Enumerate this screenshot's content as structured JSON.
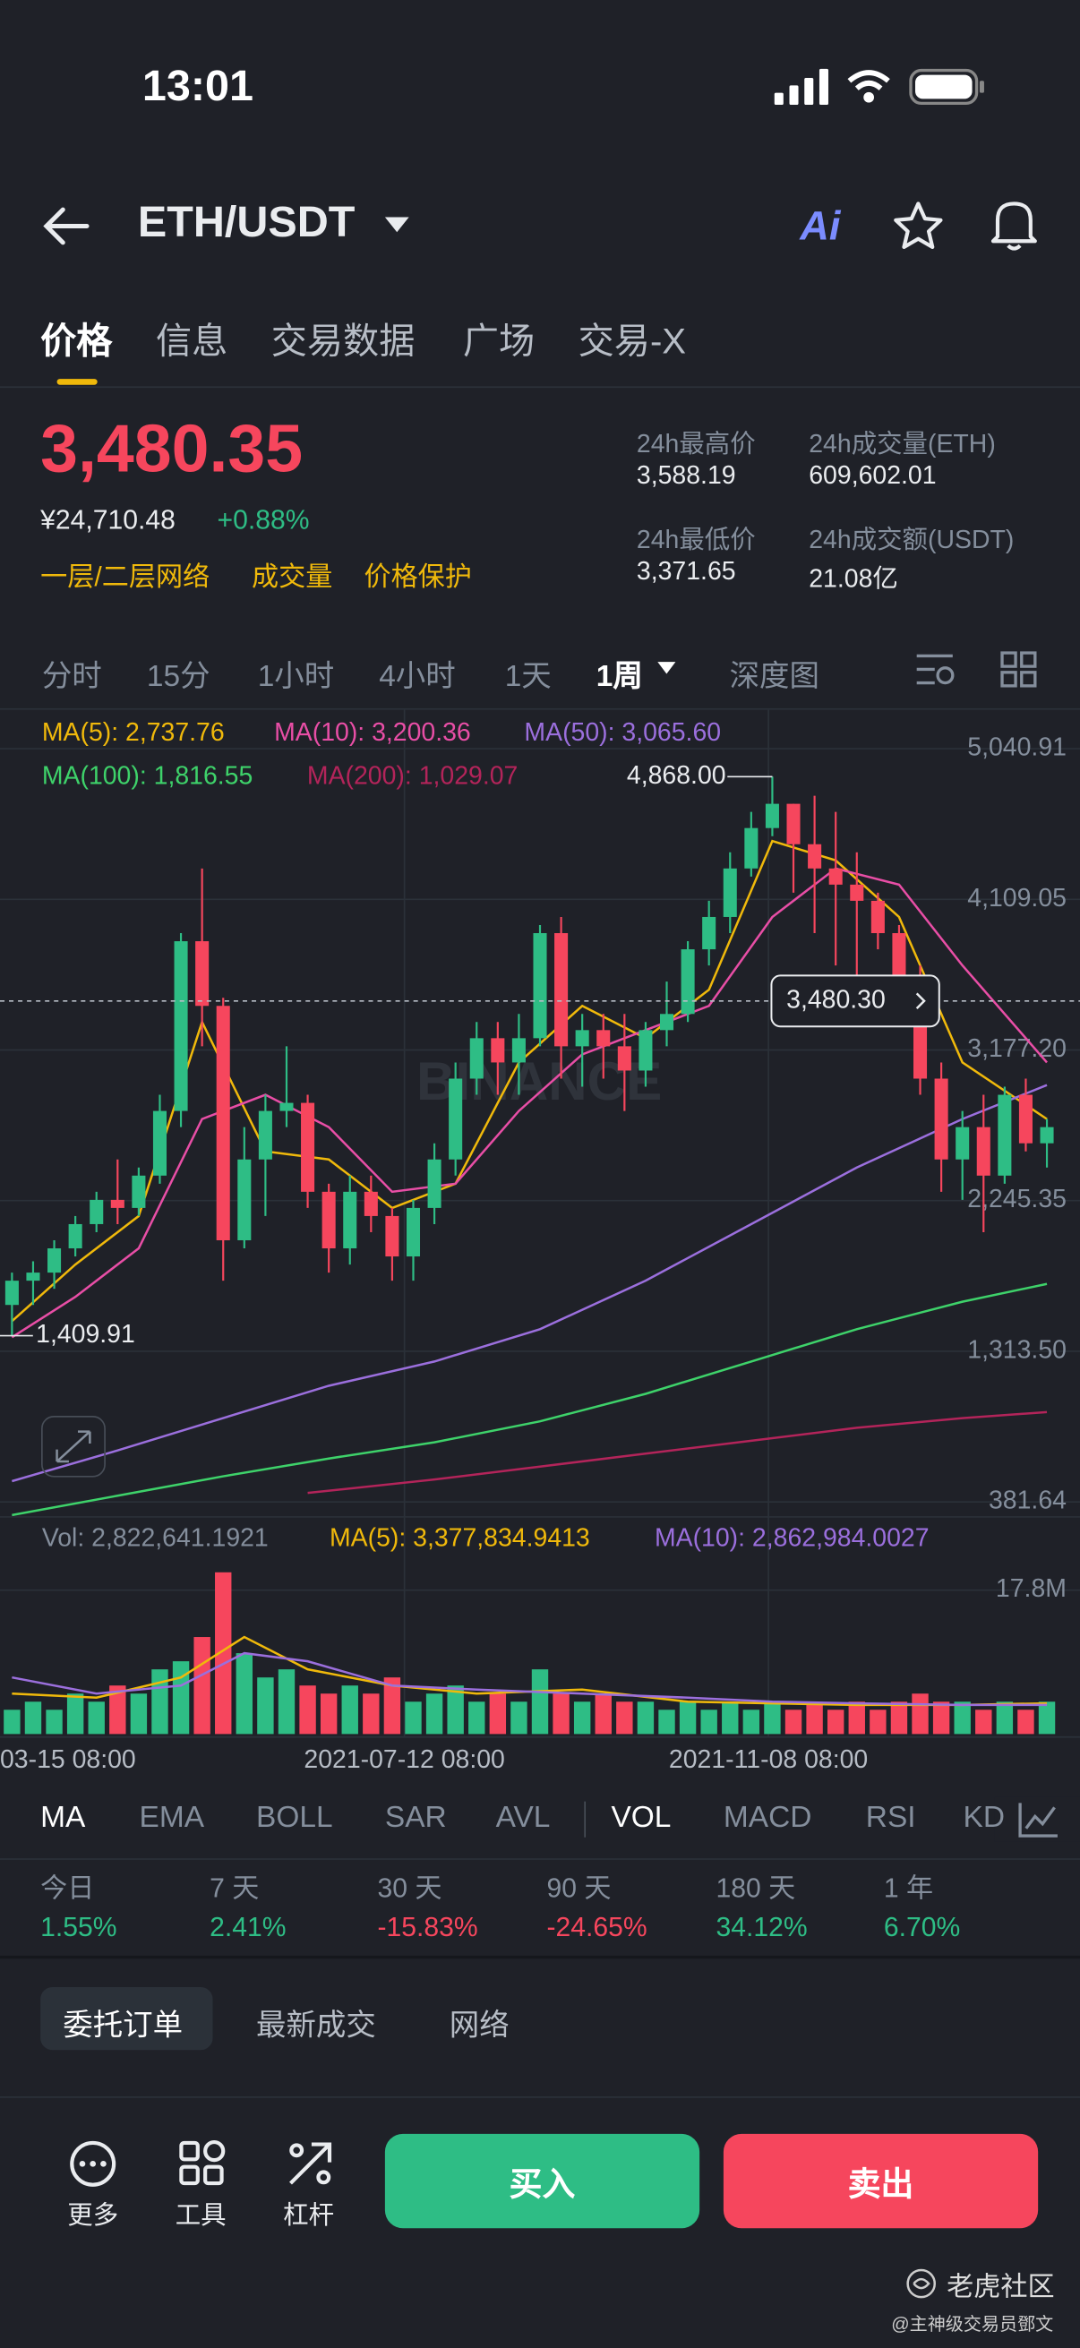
{
  "status_bar": {
    "time": "13:01"
  },
  "header": {
    "pair": "ETH/USDT",
    "ai": "Ai"
  },
  "tabs": [
    "价格",
    "信息",
    "交易数据",
    "广场",
    "交易-X"
  ],
  "price": {
    "last": "3,480.35",
    "cny": "¥24,710.48",
    "change": "+0.88%",
    "tags": [
      "一层/二层网络",
      "成交量",
      "价格保护"
    ]
  },
  "stats": [
    {
      "label": "24h最高价",
      "value": "3,588.19"
    },
    {
      "label": "24h成交量(ETH)",
      "value": "609,602.01"
    },
    {
      "label": "24h最低价",
      "value": "3,371.65"
    },
    {
      "label": "24h成交额(USDT)",
      "value": "21.08亿"
    }
  ],
  "intervals": [
    "分时",
    "15分",
    "1小时",
    "4小时",
    "1天",
    "1周",
    "深度图"
  ],
  "watermark_logo": "BINANCE",
  "chart_data": [
    {
      "type": "candlestick",
      "legend": [
        {
          "text": "MA(5): 2,737.76",
          "color": "#f0b90b"
        },
        {
          "text": "MA(10): 3,200.36",
          "color": "#e84ea6"
        },
        {
          "text": "MA(50): 3,065.60",
          "color": "#9b6fdd"
        },
        {
          "text": "MA(100): 1,816.55",
          "color": "#3ed26a"
        },
        {
          "text": "MA(200): 1,029.07",
          "color": "#b3245a"
        }
      ],
      "up_color": "#2ebd85",
      "down_color": "#f6465d",
      "open": [
        1600,
        1750,
        1800,
        1950,
        2100,
        2250,
        2200,
        2400,
        2800,
        3850,
        3450,
        2000,
        2500,
        2800,
        2850,
        2300,
        1950,
        2300,
        2150,
        1900,
        2200,
        2500,
        3000,
        3250,
        3100,
        3250,
        3900,
        3200,
        3300,
        3200,
        3050,
        3300,
        3400,
        3800,
        4000,
        4300,
        4550,
        4700,
        4450,
        4300,
        4200,
        4100,
        3900,
        3600,
        3000,
        2500,
        2700,
        2400,
        2900,
        2600
      ],
      "high": [
        1800,
        1870,
        2000,
        2150,
        2300,
        2500,
        2450,
        2900,
        3900,
        4300,
        3500,
        2700,
        2900,
        3200,
        2900,
        2350,
        2400,
        2400,
        2200,
        2250,
        2600,
        3100,
        3350,
        3350,
        3400,
        3950,
        4000,
        3400,
        3400,
        3400,
        3350,
        3600,
        3850,
        4100,
        4400,
        4650,
        4868,
        4700,
        4750,
        4650,
        4400,
        4150,
        3950,
        3700,
        3100,
        2800,
        2900,
        2950,
        3000,
        2750
      ],
      "low": [
        1409.91,
        1600,
        1700,
        1900,
        2050,
        2100,
        2150,
        2350,
        2700,
        3200,
        1750,
        1950,
        2150,
        2700,
        2200,
        1800,
        1850,
        2050,
        1750,
        1750,
        2100,
        2400,
        2900,
        2900,
        2900,
        3200,
        3000,
        2950,
        3000,
        2800,
        2950,
        3200,
        3350,
        3700,
        3900,
        4250,
        4500,
        4150,
        3900,
        3700,
        3500,
        3800,
        3500,
        2900,
        2300,
        2250,
        2050,
        2350,
        2550,
        2450
      ],
      "close": [
        1750,
        1800,
        1950,
        2100,
        2250,
        2200,
        2400,
        2800,
        3850,
        3450,
        2000,
        2500,
        2800,
        2850,
        2300,
        1950,
        2300,
        2150,
        1900,
        2200,
        2500,
        3000,
        3250,
        3100,
        3250,
        3900,
        3200,
        3300,
        3200,
        3050,
        3300,
        3400,
        3800,
        4000,
        4300,
        4550,
        4700,
        4450,
        4300,
        4200,
        4100,
        3900,
        3600,
        3000,
        2500,
        2700,
        2400,
        2900,
        2600,
        2700
      ],
      "ylim": [
        298,
        5226
      ],
      "yticks": [
        {
          "value": 5040.91,
          "label": "5,040.91"
        },
        {
          "value": 4109.05,
          "label": "4,109.05"
        },
        {
          "value": 3177.2,
          "label": "3,177.20"
        },
        {
          "value": 2245.35,
          "label": "2,245.35"
        },
        {
          "value": 1313.5,
          "label": "1,313.50"
        },
        {
          "value": 381.64,
          "label": "381.64"
        }
      ],
      "ma_lines": [
        {
          "color": "#f0b90b",
          "x": [
            0,
            3,
            6,
            9,
            12,
            15,
            18,
            21,
            24,
            27,
            30,
            33,
            36,
            39,
            42,
            45,
            49
          ],
          "values": [
            1500,
            1850,
            2150,
            3350,
            2550,
            2500,
            2200,
            2350,
            3100,
            3450,
            3250,
            3550,
            4470,
            4350,
            4000,
            3100,
            2750
          ]
        },
        {
          "color": "#e84ea6",
          "x": [
            0,
            3,
            6,
            9,
            12,
            15,
            18,
            21,
            24,
            27,
            30,
            33,
            36,
            39,
            42,
            45,
            49
          ],
          "values": [
            1400,
            1650,
            1950,
            2750,
            2900,
            2700,
            2300,
            2350,
            2800,
            3150,
            3300,
            3450,
            4000,
            4300,
            4200,
            3700,
            3100
          ]
        },
        {
          "color": "#9b6fdd",
          "x": [
            0,
            5,
            10,
            15,
            20,
            25,
            30,
            35,
            40,
            45,
            49
          ],
          "values": [
            510,
            700,
            900,
            1100,
            1250,
            1450,
            1750,
            2100,
            2450,
            2750,
            2960
          ]
        },
        {
          "color": "#3ed26a",
          "x": [
            0,
            5,
            10,
            15,
            20,
            25,
            30,
            35,
            40,
            45,
            49
          ],
          "values": [
            300,
            420,
            540,
            650,
            750,
            880,
            1050,
            1250,
            1450,
            1620,
            1730
          ]
        },
        {
          "color": "#b3245a",
          "x": [
            14,
            20,
            25,
            30,
            35,
            40,
            45,
            49
          ],
          "values": [
            437,
            520,
            600,
            680,
            760,
            840,
            900,
            937
          ]
        }
      ],
      "last_price": {
        "value": 3480.3,
        "label": "3,480.30"
      },
      "high_label": "4,868.00",
      "low_label": "1,409.91"
    },
    {
      "type": "bar",
      "legend": [
        {
          "text": "Vol: 2,822,641.1921",
          "color": "#848e9c"
        },
        {
          "text": "MA(5): 3,377,834.9413",
          "color": "#f0b90b"
        },
        {
          "text": "MA(10): 2,862,984.0027",
          "color": "#9b6fdd"
        }
      ],
      "values": [
        3,
        4,
        3,
        5,
        4,
        6,
        5,
        8,
        9,
        12,
        20,
        10,
        7,
        8,
        6,
        5,
        6,
        5,
        7,
        4,
        5,
        6,
        4,
        5,
        4,
        8,
        5,
        4,
        5,
        4,
        4,
        3,
        4,
        3,
        4,
        3,
        4,
        3,
        4,
        3,
        4,
        3,
        4,
        5,
        4,
        4,
        3,
        4,
        3,
        4
      ],
      "ylim": [
        0,
        20
      ],
      "yticks": [
        {
          "value": 17.8,
          "label": "17.8M"
        }
      ],
      "ma_lines": [
        {
          "color": "#f0b90b",
          "x": [
            0,
            4,
            8,
            11,
            14,
            18,
            22,
            27,
            32,
            36,
            40,
            45,
            49
          ],
          "values": [
            5,
            4.5,
            7,
            12,
            8,
            6,
            5,
            5.5,
            4,
            3.8,
            3.6,
            3.6,
            3.8
          ]
        },
        {
          "color": "#9b6fdd",
          "x": [
            0,
            4,
            8,
            11,
            14,
            18,
            22,
            27,
            32,
            36,
            40,
            45,
            49
          ],
          "values": [
            7,
            5,
            6,
            10,
            9,
            6,
            5.5,
            5,
            4.5,
            4,
            3.8,
            3.6,
            3.6
          ]
        }
      ]
    }
  ],
  "x_labels": [
    "03-15 08:00",
    "2021-07-12 08:00",
    "2021-11-08 08:00"
  ],
  "indicators": [
    "MA",
    "EMA",
    "BOLL",
    "SAR",
    "AVL",
    "VOL",
    "MACD",
    "RSI",
    "KD"
  ],
  "performance": [
    {
      "label": "今日",
      "value": "1.55%"
    },
    {
      "label": "7 天",
      "value": "2.41%"
    },
    {
      "label": "30 天",
      "value": "-15.83%"
    },
    {
      "label": "90 天",
      "value": "-24.65%"
    },
    {
      "label": "180 天",
      "value": "34.12%"
    },
    {
      "label": "1 年",
      "value": "6.70%"
    }
  ],
  "order_tabs": [
    "委托订单",
    "最新成交",
    "网络"
  ],
  "bottom": {
    "actions": [
      "更多",
      "工具",
      "杠杆"
    ],
    "buy": "买入",
    "sell": "卖出"
  },
  "watermark": {
    "brand": "老虎社区",
    "author": "@主神级交易员鄧文"
  }
}
